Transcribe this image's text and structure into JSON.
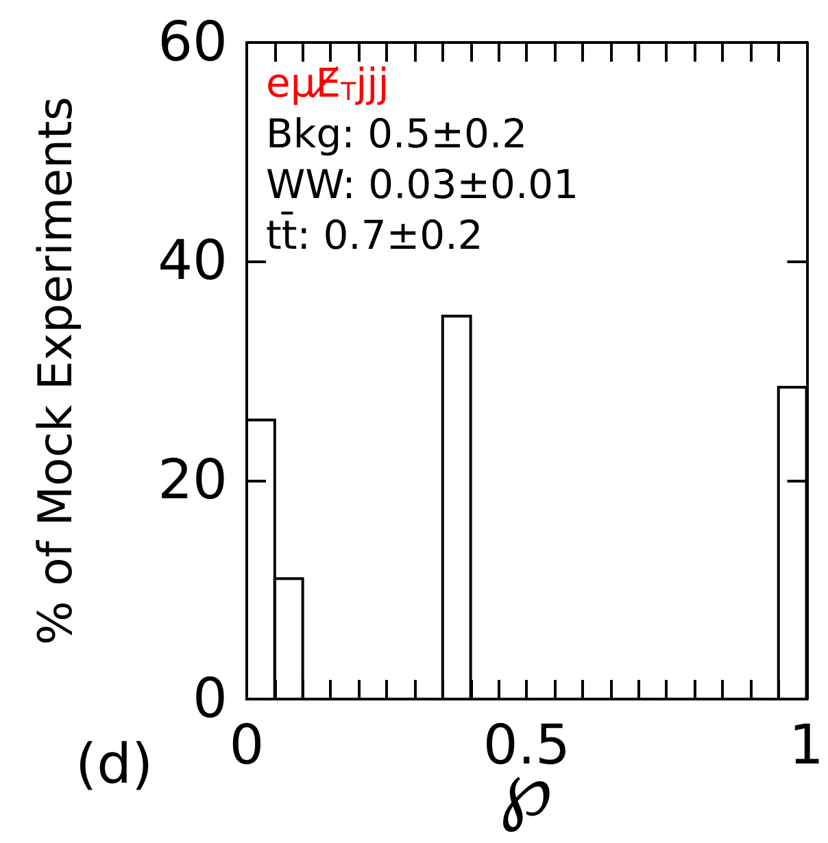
{
  "chart_data": {
    "type": "histogram",
    "xlabel": "℘",
    "ylabel": "% of Mock Experiments",
    "bins": [
      0,
      0.05,
      0.1,
      0.15,
      0.2,
      0.25,
      0.3,
      0.35,
      0.4,
      0.45,
      0.5,
      0.55,
      0.6,
      0.65,
      0.7,
      0.75,
      0.8,
      0.85,
      0.9,
      0.95,
      1
    ],
    "values": [
      25.5,
      11,
      0,
      0,
      0,
      0,
      0,
      35,
      0,
      0,
      0,
      0,
      0,
      0,
      0,
      0,
      0,
      0,
      0,
      28.5
    ],
    "color": "#000000",
    "xlim": [
      0,
      1
    ],
    "xticks": [
      0,
      {
        "value": 0.05,
        "label": null
      },
      {
        "value": 0.1,
        "label": null
      },
      {
        "value": 0.15,
        "label": null
      },
      {
        "value": 0.2,
        "label": null
      },
      {
        "value": 0.25,
        "label": null
      },
      {
        "value": 0.3,
        "label": null
      },
      {
        "value": 0.35,
        "label": null
      },
      {
        "value": 0.4,
        "label": null
      },
      {
        "value": 0.45,
        "label": null
      },
      0.5,
      {
        "value": 0.55,
        "label": null
      },
      {
        "value": 0.6,
        "label": null
      },
      {
        "value": 0.65,
        "label": null
      },
      {
        "value": 0.7,
        "label": null
      },
      {
        "value": 0.75,
        "label": null
      },
      {
        "value": 0.8,
        "label": null
      },
      {
        "value": 0.85,
        "label": null
      },
      {
        "value": 0.9,
        "label": null
      },
      {
        "value": 0.95,
        "label": null
      },
      1
    ],
    "ylim": [
      0,
      60
    ],
    "yticks": [
      0,
      20,
      40,
      60
    ],
    "annotations": [
      "eμE̸$_{T}$jjj",
      "Bkg: 0.5±0.2",
      "WW: 0.03±0.01",
      "tt̄: 0.7±0.2",
      "(d)"
    ]
  }
}
